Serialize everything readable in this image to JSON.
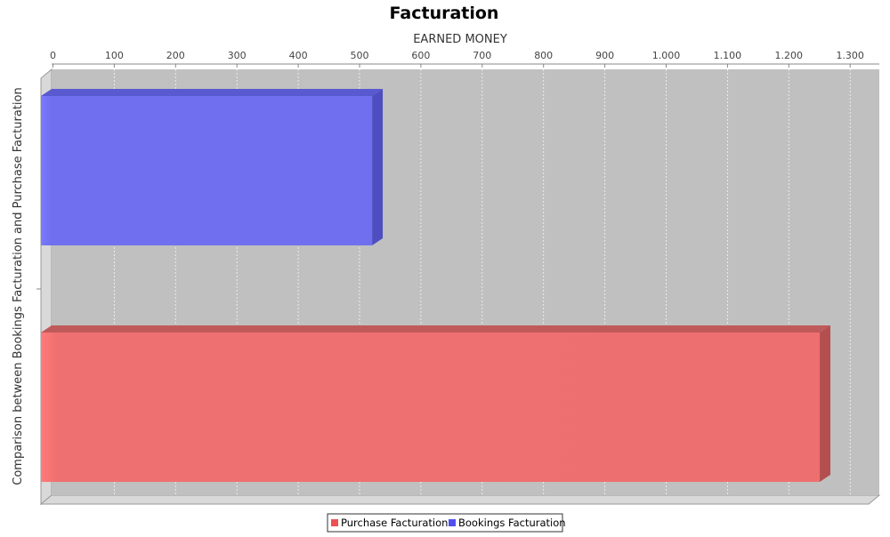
{
  "chart_data": {
    "type": "bar",
    "orientation": "horizontal",
    "style": "3d",
    "title": "Facturation",
    "xlabel": "Comparison between Bookings Facturation and Purchase Facturation",
    "ylabel": "EARNED MONEY",
    "value_axis_position": "top",
    "ylim": [
      0,
      1350
    ],
    "tick_values": [
      0,
      100,
      200,
      300,
      400,
      500,
      600,
      700,
      800,
      900,
      1000,
      1100,
      1200,
      1300
    ],
    "tick_labels": [
      "0",
      "100",
      "200",
      "300",
      "400",
      "500",
      "600",
      "700",
      "800",
      "900",
      "1.000",
      "1.100",
      "1.200",
      "1.300"
    ],
    "grid": true,
    "plot_background": "#c0c0c0",
    "series": [
      {
        "name": "Bookings Facturation",
        "values": [
          540
        ],
        "color": "#6f6fef"
      },
      {
        "name": "Purchase Facturation",
        "values": [
          1270
        ],
        "color": "#ef7070"
      }
    ],
    "legend": {
      "position": "bottom",
      "entries": [
        "Purchase Facturation",
        "Bookings Facturation"
      ]
    }
  }
}
